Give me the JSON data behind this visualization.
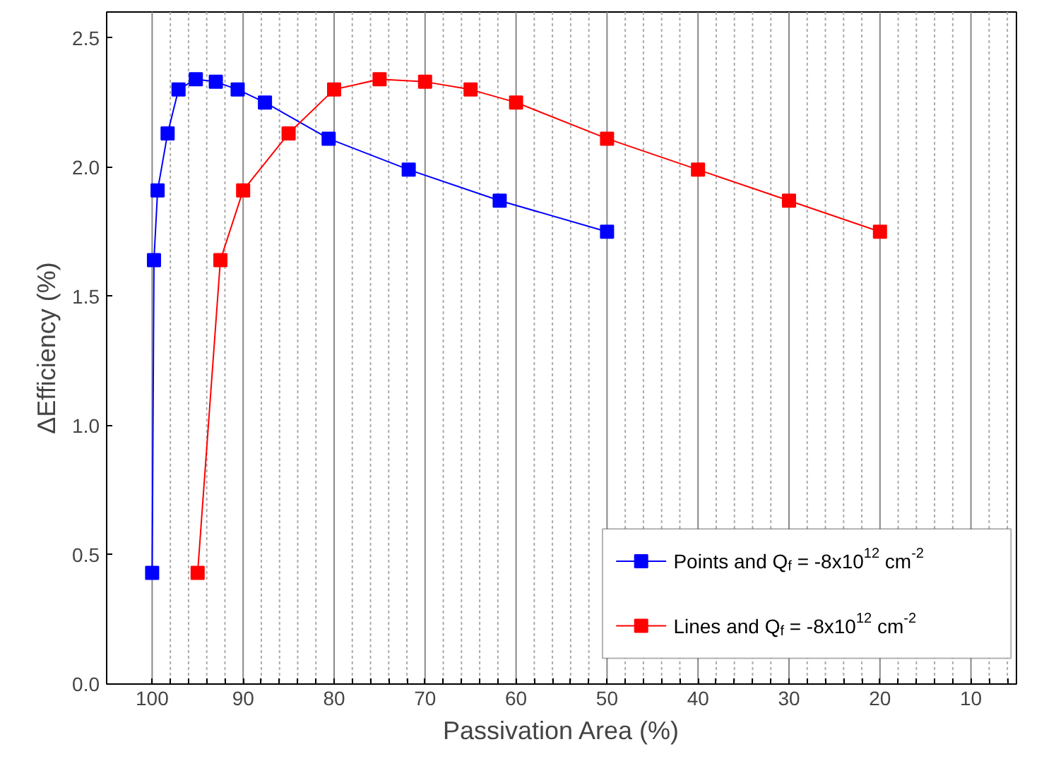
{
  "chart_data": {
    "type": "line",
    "xlabel": "Passivation Area (%)",
    "ylabel": "ΔEfficiency (%)",
    "xlim": [
      105,
      5
    ],
    "ylim": [
      0,
      2.6
    ],
    "xticks": [
      100,
      {
        "value": 98,
        "label": null
      },
      {
        "value": 96,
        "label": null
      },
      {
        "value": 94,
        "label": null
      },
      {
        "value": 92,
        "label": null
      },
      90,
      {
        "value": 88,
        "label": null
      },
      {
        "value": 86,
        "label": null
      },
      {
        "value": 84,
        "label": null
      },
      {
        "value": 82,
        "label": null
      },
      80,
      {
        "value": 78,
        "label": null
      },
      {
        "value": 76,
        "label": null
      },
      {
        "value": 74,
        "label": null
      },
      {
        "value": 72,
        "label": null
      },
      70,
      {
        "value": 68,
        "label": null
      },
      {
        "value": 66,
        "label": null
      },
      {
        "value": 64,
        "label": null
      },
      {
        "value": 62,
        "label": null
      },
      60,
      {
        "value": 58,
        "label": null
      },
      {
        "value": 56,
        "label": null
      },
      {
        "value": 54,
        "label": null
      },
      {
        "value": 52,
        "label": null
      },
      50,
      {
        "value": 48,
        "label": null
      },
      {
        "value": 46,
        "label": null
      },
      {
        "value": 44,
        "label": null
      },
      {
        "value": 42,
        "label": null
      },
      40,
      {
        "value": 38,
        "label": null
      },
      {
        "value": 36,
        "label": null
      },
      {
        "value": 34,
        "label": null
      },
      {
        "value": 32,
        "label": null
      },
      30,
      {
        "value": 28,
        "label": null
      },
      {
        "value": 26,
        "label": null
      },
      {
        "value": 24,
        "label": null
      },
      {
        "value": 22,
        "label": null
      },
      20,
      {
        "value": 18,
        "label": null
      },
      {
        "value": 16,
        "label": null
      },
      {
        "value": 14,
        "label": null
      },
      {
        "value": 12,
        "label": null
      },
      10,
      {
        "value": 8,
        "label": null
      },
      {
        "value": 6,
        "label": null
      }
    ],
    "yticks": [
      {
        "value": 0,
        "label": "0.0"
      },
      0.5,
      {
        "value": 1,
        "label": "1.0"
      },
      1.5,
      {
        "value": 2,
        "label": "2.0"
      },
      2.5
    ],
    "grid": "x",
    "legend": "bottom right",
    "marker": "square",
    "line_style": "solid",
    "series": [
      {
        "name": "Points and Q$_{f}$ = -8x10$^{12}$ cm$^{-2}$",
        "color": "#0000ff",
        "x": [
          100,
          99.8,
          99.4,
          98.3,
          97.1,
          95.2,
          93,
          90.6,
          87.6,
          80.6,
          71.8,
          61.8,
          50
        ],
        "values": [
          0.43,
          1.64,
          1.91,
          2.13,
          2.3,
          2.34,
          2.33,
          2.3,
          2.25,
          2.11,
          1.99,
          1.87,
          1.75
        ]
      },
      {
        "name": "Lines and Q$_{f}$ = -8x10$^{12}$ cm$^{-2}$",
        "color": "#ff0000",
        "x": [
          95,
          92.5,
          90,
          85,
          80,
          75,
          70,
          65,
          60,
          50,
          40,
          30,
          20
        ],
        "values": [
          0.43,
          1.64,
          1.91,
          2.13,
          2.3,
          2.34,
          2.33,
          2.3,
          2.25,
          2.11,
          1.99,
          1.87,
          1.75
        ]
      }
    ]
  }
}
